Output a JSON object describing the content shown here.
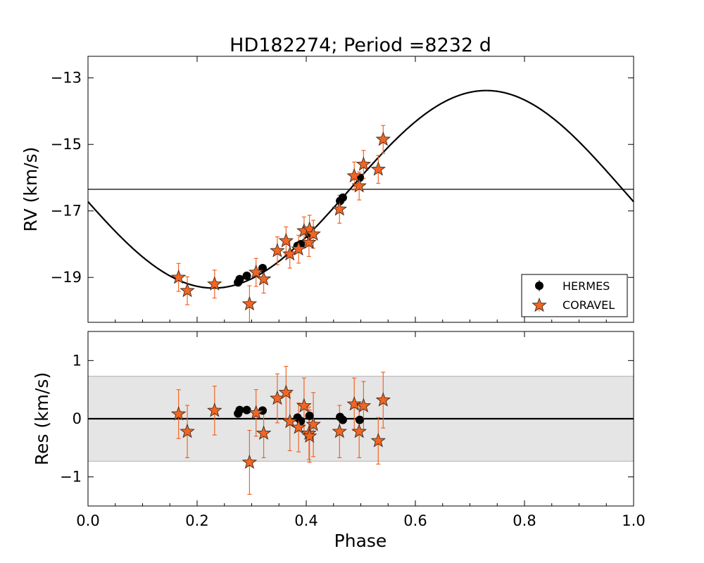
{
  "colors": {
    "hermes": "#000000",
    "coravel": "#f26522",
    "coravel_edge": "#3a2a20",
    "band": "#e5e5e5",
    "band_edge": "#b0b0b0",
    "model": "#000000"
  },
  "chart_data": [
    {
      "id": "rv",
      "type": "scatter",
      "title": "HD182274; Period =8232 d",
      "xlabel": "",
      "ylabel": "RV (km/s)",
      "xlim": [
        0.0,
        1.0
      ],
      "ylim": [
        -20.35,
        -12.35
      ],
      "yticks": [
        -13,
        -15,
        -17,
        -19
      ],
      "ytick_labels": [
        "−13",
        "−15",
        "−17",
        "−19"
      ],
      "xticks": [
        0.0,
        0.2,
        0.4,
        0.6,
        0.8,
        1.0
      ],
      "systemic_velocity": -16.35,
      "model": {
        "type": "sine",
        "center": -16.35,
        "amplitude": 2.97,
        "min_phase": 0.23,
        "description": "fitted orbit curve"
      },
      "legend": {
        "position": "lower-right",
        "entries": [
          {
            "label": "HERMES",
            "marker": "circle"
          },
          {
            "label": "CORAVEL",
            "marker": "star"
          }
        ]
      },
      "series": [
        {
          "name": "HERMES",
          "marker": "circle",
          "x": [
            0.275,
            0.278,
            0.291,
            0.32,
            0.384,
            0.39,
            0.406,
            0.462,
            0.467,
            0.498
          ],
          "y": [
            -19.15,
            -19.05,
            -18.95,
            -18.72,
            -18.05,
            -18.0,
            -17.72,
            -16.7,
            -16.6,
            -16.0
          ]
        },
        {
          "name": "CORAVEL",
          "marker": "star",
          "x": [
            0.166,
            0.182,
            0.232,
            0.296,
            0.308,
            0.322,
            0.347,
            0.363,
            0.37,
            0.386,
            0.396,
            0.405,
            0.406,
            0.413,
            0.461,
            0.488,
            0.497,
            0.505,
            0.532,
            0.541
          ],
          "y": [
            -19.0,
            -19.4,
            -19.2,
            -19.8,
            -18.85,
            -19.05,
            -18.2,
            -17.9,
            -18.3,
            -18.15,
            -17.6,
            -17.95,
            -17.55,
            -17.7,
            -16.95,
            -15.95,
            -16.25,
            -15.6,
            -15.75,
            -14.85
          ],
          "yerr": [
            0.42,
            0.42,
            0.42,
            0.55,
            0.42,
            0.42,
            0.42,
            0.42,
            0.42,
            0.42,
            0.42,
            0.42,
            0.42,
            0.42,
            0.42,
            0.42,
            0.42,
            0.42,
            0.42,
            0.42
          ]
        }
      ]
    },
    {
      "id": "res",
      "type": "scatter",
      "title": "",
      "xlabel": "Phase",
      "ylabel": "Res (km/s)",
      "xlim": [
        0.0,
        1.0
      ],
      "ylim": [
        -1.5,
        1.5
      ],
      "yticks": [
        1,
        0,
        -1
      ],
      "ytick_labels": [
        "1",
        "0",
        "−1"
      ],
      "xticks": [
        0.0,
        0.2,
        0.4,
        0.6,
        0.8,
        1.0
      ],
      "xtick_labels": [
        "0.0",
        "0.2",
        "0.4",
        "0.6",
        "0.8",
        "1.0"
      ],
      "band": [
        -0.73,
        0.73
      ],
      "zero_line": 0,
      "series": [
        {
          "name": "HERMES",
          "marker": "circle",
          "x": [
            0.275,
            0.278,
            0.291,
            0.32,
            0.384,
            0.39,
            0.406,
            0.462,
            0.467,
            0.498
          ],
          "y": [
            0.09,
            0.15,
            0.15,
            0.14,
            0.02,
            -0.04,
            0.05,
            0.03,
            -0.02,
            -0.02
          ]
        },
        {
          "name": "CORAVEL",
          "marker": "star",
          "x": [
            0.166,
            0.182,
            0.232,
            0.296,
            0.308,
            0.322,
            0.347,
            0.363,
            0.37,
            0.386,
            0.396,
            0.405,
            0.406,
            0.413,
            0.461,
            0.488,
            0.497,
            0.505,
            0.532,
            0.541
          ],
          "y": [
            0.08,
            -0.22,
            0.14,
            -0.75,
            0.1,
            -0.25,
            0.35,
            0.45,
            -0.05,
            -0.15,
            0.22,
            -0.25,
            -0.3,
            -0.1,
            -0.22,
            0.25,
            -0.22,
            0.22,
            -0.38,
            0.32
          ],
          "yerr": [
            0.42,
            0.45,
            0.42,
            0.55,
            0.4,
            0.42,
            0.42,
            0.45,
            0.5,
            0.42,
            0.48,
            0.45,
            0.45,
            0.55,
            0.45,
            0.45,
            0.45,
            0.42,
            0.4,
            0.48
          ]
        }
      ]
    }
  ]
}
